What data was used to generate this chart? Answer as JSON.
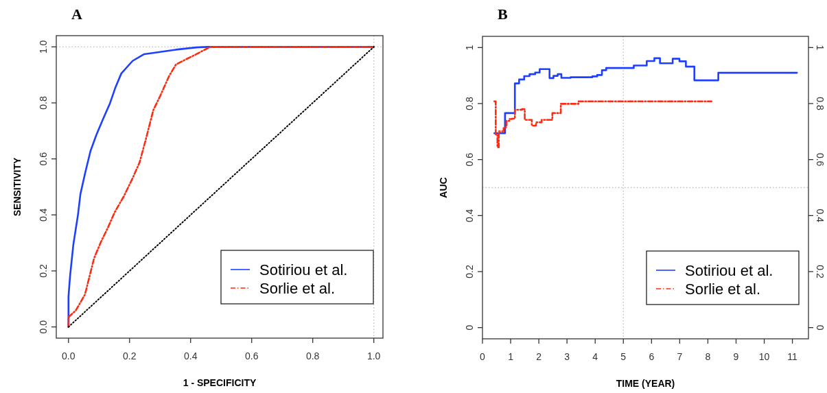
{
  "chart_data": [
    {
      "type": "line",
      "title": "A",
      "xlabel": "1 - SPECIFICITY",
      "ylabel": "SENSITIVITY",
      "xlim": [
        -0.04,
        1.03
      ],
      "ylim": [
        -0.04,
        1.04
      ],
      "xticks": [
        {
          "value": 0,
          "label": "0.0"
        },
        0.2,
        0.4,
        0.6,
        0.8,
        {
          "value": 1,
          "label": "1.0"
        }
      ],
      "yticks": [
        {
          "value": 0,
          "label": "0.0"
        },
        0.2,
        0.4,
        0.6,
        0.8,
        {
          "value": 1,
          "label": "1.0"
        }
      ],
      "legend": "bottom right",
      "ref_lines": [
        {
          "axis": "y",
          "value": 1,
          "color": "#bbbbbb",
          "line_style": "dotted"
        },
        {
          "axis": "x",
          "value": 1,
          "color": "#bbbbbb",
          "line_style": "dotted"
        }
      ],
      "series": [
        {
          "name": "Sotiriou et al.",
          "color": "#1f3fff",
          "line_style": "solid",
          "x": [
            0,
            0,
            0.005,
            0.016,
            0.031,
            0.039,
            0.054,
            0.072,
            0.091,
            0.113,
            0.136,
            0.154,
            0.173,
            0.21,
            0.248,
            0.3,
            0.352,
            0.419,
            0.457,
            1
          ],
          "values": [
            0,
            0.108,
            0.18,
            0.295,
            0.4,
            0.474,
            0.547,
            0.628,
            0.685,
            0.742,
            0.799,
            0.856,
            0.905,
            0.95,
            0.974,
            0.982,
            0.99,
            0.998,
            1,
            1
          ]
        },
        {
          "name": "Sorlie et al.",
          "color": "#ff2a10",
          "line_style": "dashed",
          "x": [
            0,
            0,
            0.024,
            0.054,
            0.084,
            0.106,
            0.128,
            0.151,
            0.181,
            0.21,
            0.233,
            0.255,
            0.278,
            0.3,
            0.33,
            0.352,
            0.382,
            0.419,
            0.464,
            1
          ],
          "values": [
            0,
            0.035,
            0.059,
            0.116,
            0.246,
            0.303,
            0.352,
            0.409,
            0.466,
            0.531,
            0.588,
            0.677,
            0.775,
            0.824,
            0.897,
            0.937,
            0.954,
            0.974,
            1,
            1
          ]
        },
        {
          "color": "#000000",
          "line_style": "dotted",
          "x": [
            0,
            1
          ],
          "values": [
            0,
            1
          ]
        }
      ]
    },
    {
      "type": "step",
      "title": "B",
      "xlabel": "TIME (YEAR)",
      "ylabel": "AUC",
      "xlim": [
        0,
        11.57
      ],
      "ylim": [
        -0.04,
        1.04
      ],
      "xticks": [
        0,
        1,
        2,
        3,
        4,
        5,
        6,
        7,
        8,
        9,
        10,
        11
      ],
      "yticks": [
        0,
        0.2,
        0.4,
        0.6,
        0.8,
        1
      ],
      "y2lim": [
        -0.04,
        1.04
      ],
      "y2ticks": [
        0,
        0.2,
        0.4,
        0.6,
        0.8,
        1
      ],
      "legend": "bottom right",
      "ref_lines": [
        {
          "axis": "y",
          "value": 0.5,
          "color": "#bbbbbb",
          "line_style": "dotted"
        },
        {
          "axis": "x",
          "value": 5,
          "color": "#bbbbbb",
          "line_style": "dotted"
        }
      ],
      "series": [
        {
          "name": "Sotiriou et al.",
          "color": "#1f3fff",
          "line_style": "solid",
          "x": [
            0.42,
            0.8,
            1.15,
            1.3,
            1.48,
            1.67,
            1.87,
            2.03,
            2.38,
            2.52,
            2.67,
            2.8,
            3.13,
            3.9,
            4.07,
            4.24,
            4.39,
            5.37,
            5.83,
            6.1,
            6.3,
            6.75,
            6.99,
            7.22,
            7.52,
            8.37,
            11.16
          ],
          "values": [
            0.694,
            0.766,
            0.872,
            0.886,
            0.898,
            0.905,
            0.911,
            0.923,
            0.891,
            0.899,
            0.905,
            0.892,
            0.894,
            0.897,
            0.902,
            0.919,
            0.927,
            0.936,
            0.952,
            0.962,
            0.944,
            0.96,
            0.951,
            0.932,
            0.883,
            0.91,
            0.91
          ]
        },
        {
          "name": "Sorlie et al.",
          "color": "#ff2a10",
          "line_style": "dashed",
          "x": [
            0.42,
            0.47,
            0.53,
            0.58,
            0.75,
            0.85,
            0.95,
            1.05,
            1.15,
            1.4,
            1.5,
            1.75,
            1.9,
            2.1,
            2.48,
            2.78,
            3.41,
            8.13
          ],
          "values": [
            0.808,
            0.69,
            0.644,
            0.701,
            0.715,
            0.738,
            0.745,
            0.746,
            0.778,
            0.78,
            0.742,
            0.721,
            0.733,
            0.742,
            0.766,
            0.799,
            0.808,
            0.808
          ]
        }
      ]
    }
  ]
}
